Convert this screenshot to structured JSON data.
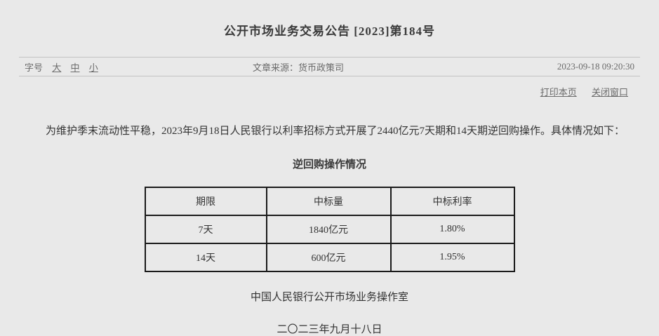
{
  "page": {
    "title": "公开市场业务交易公告  [2023]第184号"
  },
  "meta_bar": {
    "font_size_label": "字号",
    "font_size_options": [
      "大",
      "中",
      "小"
    ],
    "source_label": "文章来源：",
    "source_value": "货币政策司",
    "timestamp": "2023-09-18 09:20:30"
  },
  "actions": {
    "print_label": "打印本页",
    "close_label": "关闭窗口"
  },
  "article": {
    "body": "为维护季末流动性平稳，2023年9月18日人民银行以利率招标方式开展了2440亿元7天期和14天期逆回购操作。具体情况如下：",
    "table_title": "逆回购操作情况",
    "table": {
      "headers": [
        "期限",
        "中标量",
        "中标利率"
      ],
      "rows": [
        [
          "7天",
          "1840亿元",
          "1.80%"
        ],
        [
          "14天",
          "600亿元",
          "1.95%"
        ]
      ]
    },
    "signature": "中国人民银行公开市场业务操作室",
    "date": "二〇二三年九月十八日"
  },
  "colors": {
    "background": "#e9e9e9",
    "text": "#333333",
    "muted_text": "#6b6b6b",
    "divider": "#c3c3c3",
    "table_border": "#1a1a1a"
  }
}
